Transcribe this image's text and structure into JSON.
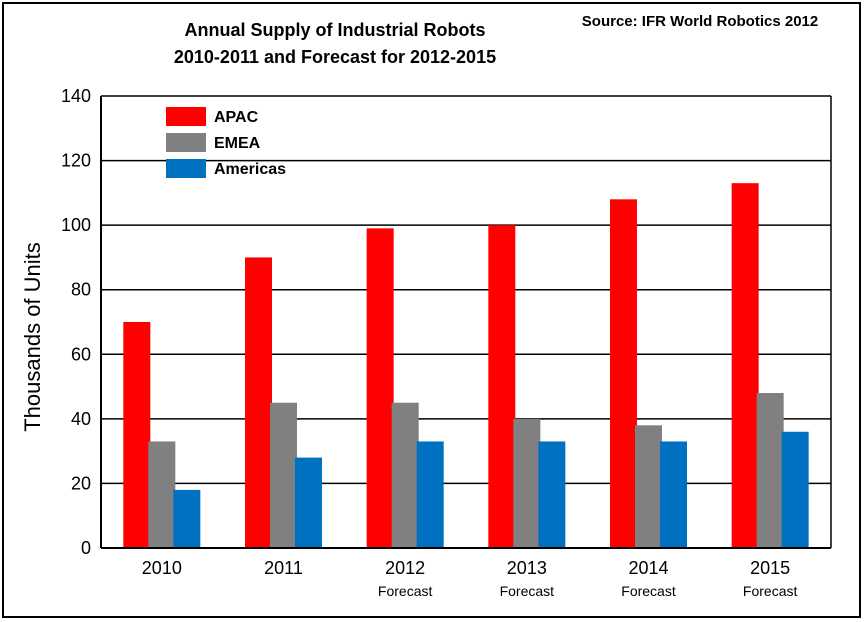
{
  "chart_data": {
    "type": "bar",
    "title": "Annual Supply of Industrial Robots",
    "subtitle": "2010-2011 and Forecast for 2012-2015",
    "source": "Source: IFR World Robotics 2012",
    "ylabel": "Thousands of Units",
    "xlabel": "",
    "ylim": [
      0,
      140
    ],
    "yticks": [
      0,
      20,
      40,
      60,
      80,
      100,
      120,
      140
    ],
    "grid": true,
    "legend_position": "top-left",
    "categories": [
      "2010",
      "2011",
      "2012",
      "2013",
      "2014",
      "2015"
    ],
    "category_sublabels": [
      "",
      "",
      "Forecast",
      "Forecast",
      "Forecast",
      "Forecast"
    ],
    "series": [
      {
        "name": "APAC",
        "color": "#ff0000",
        "values": [
          70,
          90,
          99,
          100,
          108,
          113
        ]
      },
      {
        "name": "EMEA",
        "color": "#808080",
        "values": [
          33,
          45,
          45,
          40,
          38,
          48
        ]
      },
      {
        "name": "Americas",
        "color": "#0070c0",
        "values": [
          18,
          28,
          33,
          33,
          33,
          36
        ]
      }
    ]
  }
}
